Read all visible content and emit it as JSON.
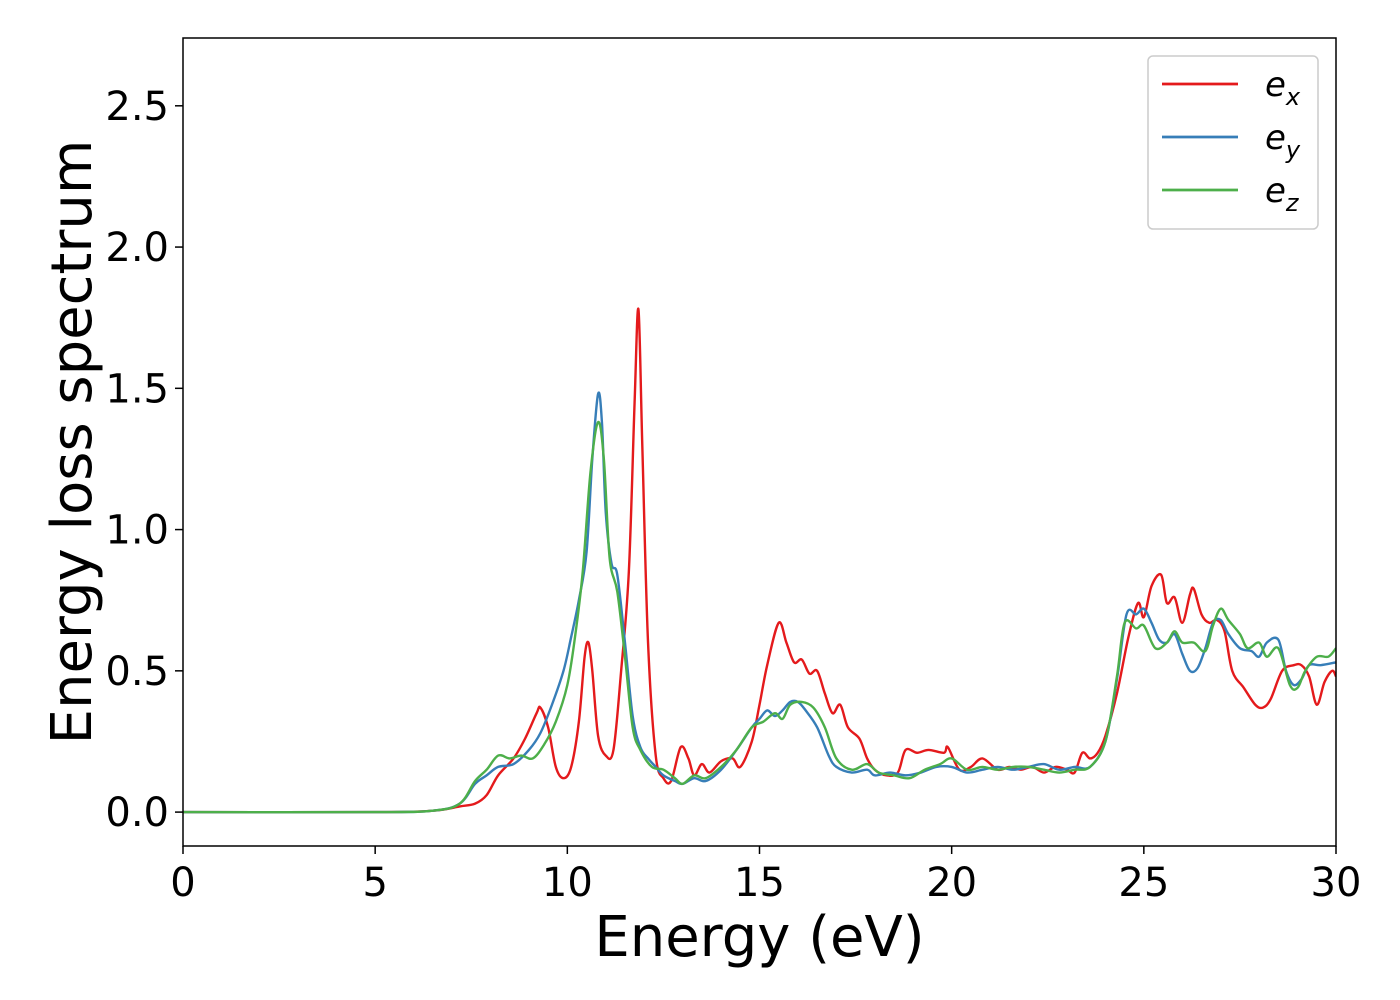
{
  "chart_data": {
    "type": "line",
    "title": "",
    "xlabel": "Energy (eV)",
    "ylabel": "Energy loss spectrum",
    "xlim": [
      0,
      30
    ],
    "ylim": [
      -0.12,
      2.74
    ],
    "xticks": [
      0,
      5,
      10,
      15,
      20,
      25,
      30
    ],
    "xtick_labels": [
      "0",
      "5",
      "10",
      "15",
      "20",
      "25",
      "30"
    ],
    "yticks": [
      0.0,
      0.5,
      1.0,
      1.5,
      2.0,
      2.5
    ],
    "ytick_labels": [
      "0.0",
      "0.5",
      "1.0",
      "1.5",
      "2.0",
      "2.5"
    ],
    "grid": false,
    "legend_position": "top-right",
    "series": [
      {
        "name": "e_x",
        "label_base": "e",
        "label_sub": "x",
        "color": "#e41a1c",
        "points": [
          [
            0,
            0.0
          ],
          [
            5,
            0.0
          ],
          [
            6.5,
            0.005
          ],
          [
            7.2,
            0.02
          ],
          [
            7.6,
            0.03
          ],
          [
            7.9,
            0.06
          ],
          [
            8.2,
            0.13
          ],
          [
            8.6,
            0.19
          ],
          [
            8.9,
            0.26
          ],
          [
            9.2,
            0.35
          ],
          [
            9.3,
            0.37
          ],
          [
            9.5,
            0.3
          ],
          [
            9.7,
            0.16
          ],
          [
            9.9,
            0.12
          ],
          [
            10.1,
            0.16
          ],
          [
            10.3,
            0.32
          ],
          [
            10.45,
            0.55
          ],
          [
            10.55,
            0.6
          ],
          [
            10.65,
            0.5
          ],
          [
            10.8,
            0.27
          ],
          [
            11.0,
            0.2
          ],
          [
            11.2,
            0.22
          ],
          [
            11.4,
            0.5
          ],
          [
            11.6,
            0.85
          ],
          [
            11.75,
            1.45
          ],
          [
            11.85,
            1.78
          ],
          [
            11.95,
            1.3
          ],
          [
            12.1,
            0.6
          ],
          [
            12.3,
            0.2
          ],
          [
            12.5,
            0.12
          ],
          [
            12.7,
            0.11
          ],
          [
            12.95,
            0.23
          ],
          [
            13.15,
            0.19
          ],
          [
            13.3,
            0.13
          ],
          [
            13.5,
            0.17
          ],
          [
            13.7,
            0.14
          ],
          [
            14.0,
            0.18
          ],
          [
            14.3,
            0.19
          ],
          [
            14.5,
            0.16
          ],
          [
            14.8,
            0.25
          ],
          [
            15.0,
            0.38
          ],
          [
            15.2,
            0.52
          ],
          [
            15.5,
            0.67
          ],
          [
            15.7,
            0.6
          ],
          [
            15.9,
            0.53
          ],
          [
            16.1,
            0.54
          ],
          [
            16.3,
            0.49
          ],
          [
            16.5,
            0.5
          ],
          [
            16.7,
            0.42
          ],
          [
            16.9,
            0.35
          ],
          [
            17.1,
            0.38
          ],
          [
            17.3,
            0.3
          ],
          [
            17.6,
            0.26
          ],
          [
            17.8,
            0.19
          ],
          [
            18.0,
            0.15
          ],
          [
            18.3,
            0.13
          ],
          [
            18.6,
            0.14
          ],
          [
            18.8,
            0.22
          ],
          [
            19.1,
            0.21
          ],
          [
            19.4,
            0.22
          ],
          [
            19.8,
            0.21
          ],
          [
            19.9,
            0.23
          ],
          [
            20.2,
            0.15
          ],
          [
            20.5,
            0.16
          ],
          [
            20.8,
            0.19
          ],
          [
            21.2,
            0.15
          ],
          [
            21.5,
            0.16
          ],
          [
            21.8,
            0.15
          ],
          [
            22.1,
            0.16
          ],
          [
            22.4,
            0.14
          ],
          [
            22.7,
            0.16
          ],
          [
            23.0,
            0.15
          ],
          [
            23.2,
            0.14
          ],
          [
            23.4,
            0.21
          ],
          [
            23.6,
            0.19
          ],
          [
            23.8,
            0.21
          ],
          [
            24.0,
            0.27
          ],
          [
            24.3,
            0.42
          ],
          [
            24.6,
            0.62
          ],
          [
            24.85,
            0.74
          ],
          [
            25.0,
            0.69
          ],
          [
            25.2,
            0.8
          ],
          [
            25.45,
            0.84
          ],
          [
            25.6,
            0.74
          ],
          [
            25.8,
            0.76
          ],
          [
            26.0,
            0.67
          ],
          [
            26.2,
            0.77
          ],
          [
            26.3,
            0.79
          ],
          [
            26.5,
            0.7
          ],
          [
            26.7,
            0.67
          ],
          [
            26.9,
            0.68
          ],
          [
            27.1,
            0.64
          ],
          [
            27.3,
            0.5
          ],
          [
            27.6,
            0.44
          ],
          [
            27.9,
            0.38
          ],
          [
            28.1,
            0.37
          ],
          [
            28.3,
            0.4
          ],
          [
            28.6,
            0.5
          ],
          [
            28.9,
            0.52
          ],
          [
            29.1,
            0.52
          ],
          [
            29.3,
            0.48
          ],
          [
            29.5,
            0.38
          ],
          [
            29.7,
            0.46
          ],
          [
            29.9,
            0.5
          ],
          [
            30,
            0.48
          ]
        ]
      },
      {
        "name": "e_y",
        "label_base": "e",
        "label_sub": "y",
        "color": "#377eb8",
        "points": [
          [
            0,
            0.0
          ],
          [
            5,
            0.0
          ],
          [
            6.5,
            0.005
          ],
          [
            7.2,
            0.03
          ],
          [
            7.6,
            0.1
          ],
          [
            7.9,
            0.13
          ],
          [
            8.2,
            0.16
          ],
          [
            8.6,
            0.17
          ],
          [
            9.0,
            0.22
          ],
          [
            9.3,
            0.28
          ],
          [
            9.6,
            0.38
          ],
          [
            9.9,
            0.5
          ],
          [
            10.1,
            0.62
          ],
          [
            10.3,
            0.75
          ],
          [
            10.5,
            0.92
          ],
          [
            10.65,
            1.25
          ],
          [
            10.8,
            1.48
          ],
          [
            10.9,
            1.38
          ],
          [
            11.0,
            1.06
          ],
          [
            11.15,
            0.88
          ],
          [
            11.3,
            0.84
          ],
          [
            11.5,
            0.6
          ],
          [
            11.7,
            0.34
          ],
          [
            11.9,
            0.23
          ],
          [
            12.1,
            0.19
          ],
          [
            12.3,
            0.16
          ],
          [
            12.5,
            0.13
          ],
          [
            12.8,
            0.11
          ],
          [
            13.0,
            0.1
          ],
          [
            13.3,
            0.12
          ],
          [
            13.6,
            0.11
          ],
          [
            14.0,
            0.15
          ],
          [
            14.4,
            0.22
          ],
          [
            14.8,
            0.3
          ],
          [
            15.0,
            0.33
          ],
          [
            15.2,
            0.36
          ],
          [
            15.4,
            0.34
          ],
          [
            15.6,
            0.36
          ],
          [
            15.8,
            0.39
          ],
          [
            16.0,
            0.39
          ],
          [
            16.2,
            0.36
          ],
          [
            16.5,
            0.3
          ],
          [
            16.8,
            0.2
          ],
          [
            17.0,
            0.16
          ],
          [
            17.4,
            0.14
          ],
          [
            17.8,
            0.15
          ],
          [
            18.0,
            0.13
          ],
          [
            18.4,
            0.14
          ],
          [
            18.8,
            0.13
          ],
          [
            19.2,
            0.14
          ],
          [
            19.6,
            0.16
          ],
          [
            20.0,
            0.16
          ],
          [
            20.4,
            0.14
          ],
          [
            20.8,
            0.15
          ],
          [
            21.2,
            0.16
          ],
          [
            21.6,
            0.15
          ],
          [
            22.0,
            0.16
          ],
          [
            22.4,
            0.17
          ],
          [
            22.8,
            0.15
          ],
          [
            23.2,
            0.16
          ],
          [
            23.6,
            0.16
          ],
          [
            24.0,
            0.25
          ],
          [
            24.3,
            0.47
          ],
          [
            24.55,
            0.7
          ],
          [
            24.8,
            0.7
          ],
          [
            25.0,
            0.72
          ],
          [
            25.2,
            0.67
          ],
          [
            25.4,
            0.61
          ],
          [
            25.6,
            0.6
          ],
          [
            25.8,
            0.63
          ],
          [
            26.0,
            0.56
          ],
          [
            26.2,
            0.5
          ],
          [
            26.4,
            0.51
          ],
          [
            26.6,
            0.58
          ],
          [
            26.8,
            0.67
          ],
          [
            27.0,
            0.68
          ],
          [
            27.2,
            0.63
          ],
          [
            27.5,
            0.58
          ],
          [
            27.8,
            0.57
          ],
          [
            28.0,
            0.55
          ],
          [
            28.2,
            0.6
          ],
          [
            28.5,
            0.61
          ],
          [
            28.7,
            0.5
          ],
          [
            28.9,
            0.45
          ],
          [
            29.1,
            0.47
          ],
          [
            29.3,
            0.52
          ],
          [
            29.6,
            0.52
          ],
          [
            30,
            0.53
          ]
        ]
      },
      {
        "name": "e_z",
        "label_base": "e",
        "label_sub": "z",
        "color": "#4daf4a",
        "points": [
          [
            0,
            0.0
          ],
          [
            5,
            0.0
          ],
          [
            6.5,
            0.005
          ],
          [
            7.2,
            0.03
          ],
          [
            7.6,
            0.11
          ],
          [
            7.9,
            0.15
          ],
          [
            8.2,
            0.2
          ],
          [
            8.5,
            0.19
          ],
          [
            8.8,
            0.2
          ],
          [
            9.1,
            0.19
          ],
          [
            9.4,
            0.24
          ],
          [
            9.7,
            0.32
          ],
          [
            10.0,
            0.45
          ],
          [
            10.2,
            0.62
          ],
          [
            10.4,
            0.85
          ],
          [
            10.6,
            1.2
          ],
          [
            10.8,
            1.38
          ],
          [
            10.95,
            1.25
          ],
          [
            11.1,
            0.9
          ],
          [
            11.3,
            0.78
          ],
          [
            11.5,
            0.55
          ],
          [
            11.7,
            0.3
          ],
          [
            11.9,
            0.22
          ],
          [
            12.2,
            0.16
          ],
          [
            12.5,
            0.15
          ],
          [
            12.8,
            0.12
          ],
          [
            13.0,
            0.1
          ],
          [
            13.3,
            0.13
          ],
          [
            13.6,
            0.12
          ],
          [
            14.0,
            0.16
          ],
          [
            14.4,
            0.22
          ],
          [
            14.8,
            0.3
          ],
          [
            15.1,
            0.32
          ],
          [
            15.4,
            0.35
          ],
          [
            15.6,
            0.33
          ],
          [
            15.8,
            0.38
          ],
          [
            16.1,
            0.39
          ],
          [
            16.4,
            0.37
          ],
          [
            16.7,
            0.3
          ],
          [
            17.0,
            0.19
          ],
          [
            17.4,
            0.15
          ],
          [
            17.8,
            0.17
          ],
          [
            18.1,
            0.14
          ],
          [
            18.5,
            0.13
          ],
          [
            18.9,
            0.12
          ],
          [
            19.3,
            0.15
          ],
          [
            19.7,
            0.17
          ],
          [
            20.0,
            0.19
          ],
          [
            20.4,
            0.15
          ],
          [
            20.8,
            0.16
          ],
          [
            21.2,
            0.15
          ],
          [
            21.6,
            0.16
          ],
          [
            22.0,
            0.16
          ],
          [
            22.4,
            0.15
          ],
          [
            22.8,
            0.14
          ],
          [
            23.2,
            0.15
          ],
          [
            23.6,
            0.16
          ],
          [
            24.0,
            0.25
          ],
          [
            24.3,
            0.48
          ],
          [
            24.5,
            0.67
          ],
          [
            24.8,
            0.65
          ],
          [
            25.0,
            0.66
          ],
          [
            25.3,
            0.58
          ],
          [
            25.6,
            0.6
          ],
          [
            25.8,
            0.64
          ],
          [
            26.0,
            0.6
          ],
          [
            26.3,
            0.6
          ],
          [
            26.6,
            0.57
          ],
          [
            26.8,
            0.66
          ],
          [
            27.0,
            0.72
          ],
          [
            27.2,
            0.68
          ],
          [
            27.5,
            0.63
          ],
          [
            27.7,
            0.58
          ],
          [
            28.0,
            0.6
          ],
          [
            28.2,
            0.55
          ],
          [
            28.5,
            0.58
          ],
          [
            28.8,
            0.45
          ],
          [
            29.0,
            0.44
          ],
          [
            29.2,
            0.5
          ],
          [
            29.5,
            0.55
          ],
          [
            29.8,
            0.55
          ],
          [
            30,
            0.58
          ]
        ]
      }
    ]
  }
}
